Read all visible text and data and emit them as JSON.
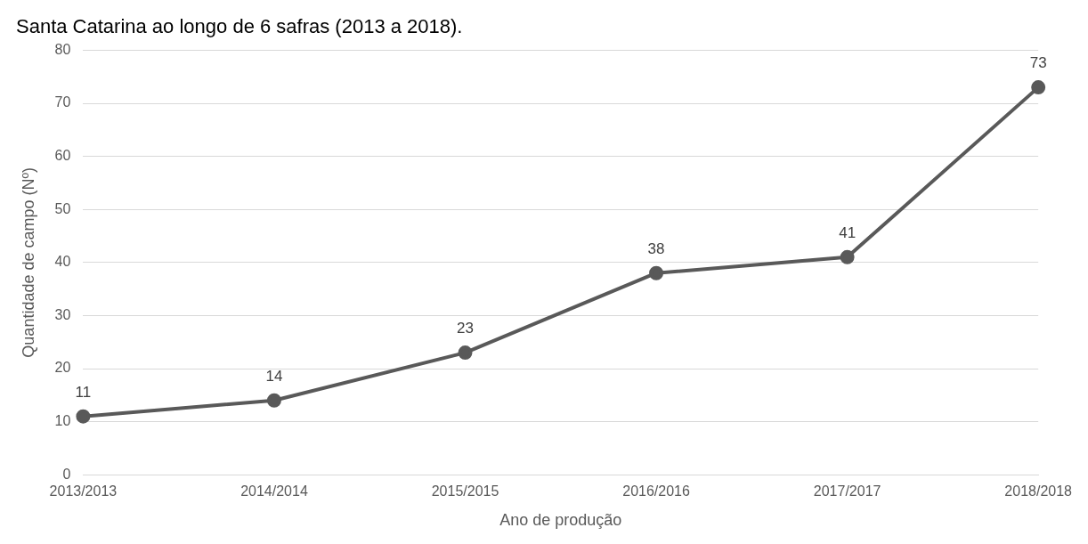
{
  "chart_data": {
    "type": "line",
    "title": "Santa Catarina ao longo de 6 safras (2013 a 2018).",
    "xlabel": "Ano de produção",
    "ylabel": "Quantidade de campo (Nº)",
    "categories": [
      "2013/2013",
      "2014/2014",
      "2015/2015",
      "2016/2016",
      "2017/2017",
      "2018/2018"
    ],
    "series": [
      {
        "color": "#595959",
        "values": [
          11,
          14,
          23,
          38,
          41,
          73
        ]
      }
    ],
    "ylim": [
      0,
      80
    ],
    "yticks": [
      0,
      10,
      20,
      30,
      40,
      50,
      60,
      70,
      80
    ],
    "grid": "y",
    "legend": false,
    "marker": "circle",
    "line_style": "solid",
    "data_labels": true
  }
}
